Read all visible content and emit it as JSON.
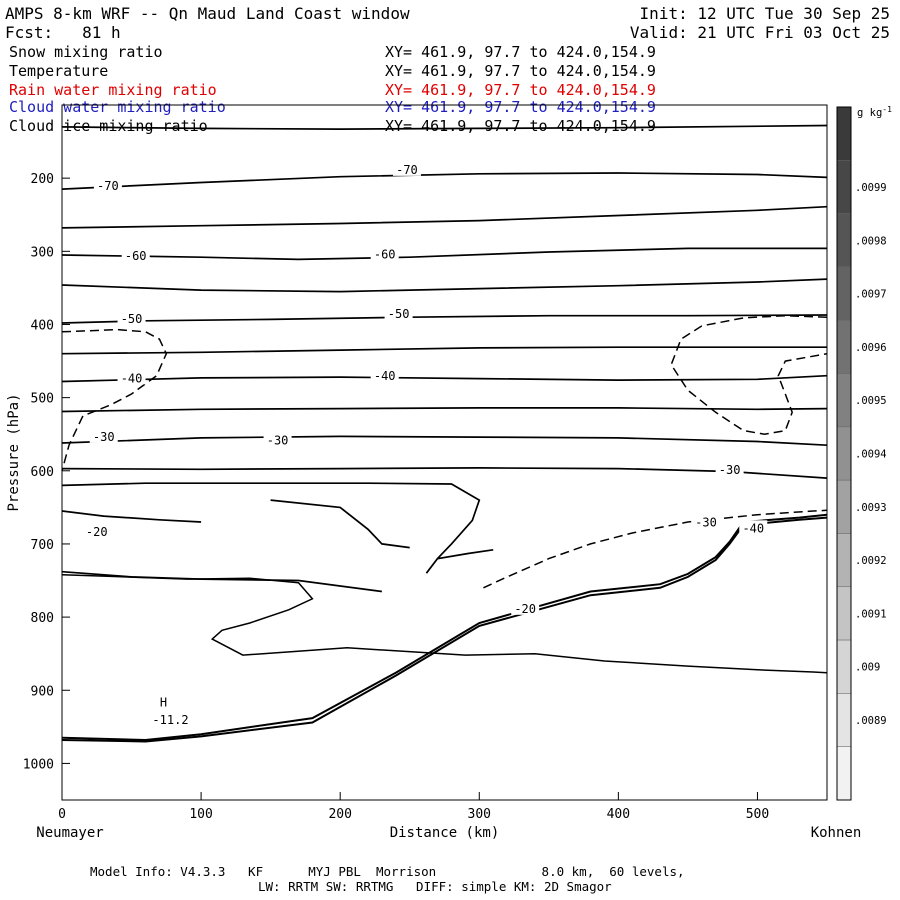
{
  "header": {
    "title": "AMPS 8-km WRF -- Qn Maud Land Coast window",
    "init": "Init: 12 UTC Tue 30 Sep 25",
    "fcst": "Fcst:   81 h",
    "valid": "Valid: 21 UTC Fri 03 Oct 25"
  },
  "layers": [
    {
      "name": "Snow mixing ratio",
      "xy": "XY= 461.9, 97.7 to 424.0,154.9",
      "color": "#000000"
    },
    {
      "name": "Temperature",
      "xy": "XY= 461.9, 97.7 to 424.0,154.9",
      "color": "#000000"
    },
    {
      "name": "Rain water mixing ratio",
      "xy": "XY= 461.9, 97.7 to 424.0,154.9",
      "color": "#e00000"
    },
    {
      "name": "Cloud water mixing ratio",
      "xy": "XY= 461.9, 97.7 to 424.0,154.9",
      "color": "#2020c0"
    },
    {
      "name": "Cloud ice mixing ratio",
      "xy": "XY= 461.9, 97.7 to 424.0,154.9",
      "color": "#000000"
    }
  ],
  "footer": {
    "line1": "Model Info: V4.3.3   KF      MYJ PBL  Morrison              8.0 km,  60 levels,",
    "line2": "LW: RRTM SW: RRTMG   DIFF: simple KM: 2D Smagor"
  },
  "chart_data": {
    "type": "contour",
    "xlabel": "Distance (km)",
    "ylabel": "Pressure (hPa)",
    "x_left_label": "Neumayer",
    "x_right_label": "Kohnen",
    "xlim": [
      0,
      550
    ],
    "ylim": [
      1050,
      100
    ],
    "x_ticks": [
      0,
      100,
      200,
      300,
      400,
      500
    ],
    "y_ticks": [
      200,
      300,
      400,
      500,
      600,
      700,
      800,
      900,
      1000
    ],
    "colorbar": {
      "unit": "g kg",
      "unit_exp": "-1",
      "labels": [
        ".0099",
        ".0098",
        ".0097",
        ".0096",
        ".0095",
        ".0094",
        ".0093",
        ".0092",
        ".0091",
        ".009",
        ".0089"
      ],
      "colors": [
        "#3a3a3a",
        "#474747",
        "#555555",
        "#636363",
        "#727272",
        "#818181",
        "#919191",
        "#a2a2a2",
        "#b3b3b3",
        "#c4c4c4",
        "#d5d5d5",
        "#e4e4e4",
        "#f2f2f2"
      ]
    },
    "isotherms": [
      {
        "points": [
          [
            0,
            130
          ],
          [
            100,
            132
          ],
          [
            200,
            133
          ],
          [
            300,
            132
          ],
          [
            400,
            131
          ],
          [
            550,
            128
          ]
        ]
      },
      {
        "points": [
          [
            0,
            215
          ],
          [
            100,
            206
          ],
          [
            200,
            198
          ],
          [
            300,
            194
          ],
          [
            400,
            193
          ],
          [
            500,
            195
          ],
          [
            550,
            199
          ]
        ]
      },
      {
        "points": [
          [
            0,
            268
          ],
          [
            100,
            265
          ],
          [
            200,
            262
          ],
          [
            300,
            258
          ],
          [
            400,
            251
          ],
          [
            500,
            244
          ],
          [
            550,
            239
          ]
        ]
      },
      {
        "points": [
          [
            0,
            305
          ],
          [
            100,
            308
          ],
          [
            170,
            311
          ],
          [
            250,
            308
          ],
          [
            350,
            301
          ],
          [
            450,
            296
          ],
          [
            550,
            296
          ]
        ]
      },
      {
        "points": [
          [
            0,
            346
          ],
          [
            100,
            353
          ],
          [
            200,
            355
          ],
          [
            300,
            351
          ],
          [
            400,
            347
          ],
          [
            500,
            342
          ],
          [
            550,
            338
          ]
        ]
      },
      {
        "points": [
          [
            0,
            398
          ],
          [
            60,
            395
          ],
          [
            150,
            393
          ],
          [
            250,
            390
          ],
          [
            350,
            388
          ],
          [
            450,
            388
          ],
          [
            550,
            387
          ]
        ]
      },
      {
        "points": [
          [
            0,
            440
          ],
          [
            100,
            438
          ],
          [
            200,
            435
          ],
          [
            300,
            432
          ],
          [
            400,
            431
          ],
          [
            500,
            431
          ],
          [
            550,
            431
          ]
        ]
      },
      {
        "points": [
          [
            0,
            478
          ],
          [
            100,
            473
          ],
          [
            200,
            472
          ],
          [
            300,
            474
          ],
          [
            400,
            476
          ],
          [
            500,
            475
          ],
          [
            550,
            470
          ]
        ]
      },
      {
        "points": [
          [
            0,
            519
          ],
          [
            100,
            516
          ],
          [
            200,
            515
          ],
          [
            300,
            514
          ],
          [
            400,
            514
          ],
          [
            500,
            516
          ],
          [
            550,
            515
          ]
        ]
      },
      {
        "points": [
          [
            0,
            562
          ],
          [
            100,
            555
          ],
          [
            200,
            553
          ],
          [
            300,
            554
          ],
          [
            400,
            555
          ],
          [
            500,
            560
          ],
          [
            550,
            565
          ]
        ]
      },
      {
        "points": [
          [
            0,
            597
          ],
          [
            100,
            598
          ],
          [
            200,
            597
          ],
          [
            300,
            596
          ],
          [
            400,
            597
          ],
          [
            480,
            601
          ],
          [
            550,
            610
          ]
        ]
      },
      {
        "points": [
          [
            0,
            620
          ],
          [
            60,
            617
          ],
          [
            150,
            617
          ],
          [
            220,
            617
          ],
          [
            280,
            618
          ],
          [
            300,
            640
          ],
          [
            295,
            668
          ],
          [
            280,
            700
          ],
          [
            270,
            720
          ],
          [
            262,
            740
          ],
          [
            270,
            720
          ],
          [
            292,
            713
          ],
          [
            310,
            708
          ]
        ]
      },
      {
        "points": [
          [
            0,
            738
          ],
          [
            50,
            745
          ],
          [
            100,
            748
          ],
          [
            170,
            750
          ],
          [
            230,
            765
          ]
        ]
      },
      {
        "points": [
          [
            0,
            655
          ],
          [
            30,
            662
          ],
          [
            70,
            667
          ],
          [
            100,
            670
          ]
        ]
      },
      {
        "points": [
          [
            150,
            640
          ],
          [
            200,
            650
          ],
          [
            220,
            680
          ],
          [
            230,
            700
          ],
          [
            250,
            705
          ]
        ]
      }
    ],
    "solid_extra": [
      {
        "points": [
          [
            0,
            742
          ],
          [
            30,
            744
          ],
          [
            90,
            748
          ],
          [
            135,
            747
          ],
          [
            170,
            753
          ],
          [
            180,
            775
          ],
          [
            163,
            790
          ],
          [
            135,
            808
          ],
          [
            115,
            818
          ],
          [
            108,
            830
          ],
          [
            130,
            852
          ],
          [
            205,
            842
          ],
          [
            290,
            852
          ],
          [
            340,
            850
          ],
          [
            390,
            860
          ],
          [
            450,
            867
          ],
          [
            500,
            872
          ],
          [
            540,
            875
          ],
          [
            550,
            876
          ]
        ]
      }
    ],
    "terrain": [
      {
        "points": [
          [
            0,
            965
          ],
          [
            60,
            968
          ],
          [
            100,
            960
          ],
          [
            180,
            938
          ],
          [
            240,
            876
          ],
          [
            300,
            808
          ],
          [
            380,
            765
          ],
          [
            430,
            755
          ],
          [
            450,
            741
          ],
          [
            470,
            718
          ],
          [
            480,
            697
          ],
          [
            490,
            670
          ],
          [
            530,
            664
          ],
          [
            550,
            660
          ]
        ]
      },
      {
        "points": [
          [
            0,
            968
          ],
          [
            60,
            970
          ],
          [
            100,
            963
          ],
          [
            180,
            944
          ],
          [
            240,
            880
          ],
          [
            300,
            812
          ],
          [
            380,
            770
          ],
          [
            430,
            760
          ],
          [
            450,
            745
          ],
          [
            470,
            722
          ],
          [
            480,
            700
          ],
          [
            490,
            674
          ],
          [
            530,
            667
          ],
          [
            550,
            664
          ]
        ]
      }
    ],
    "dashed": [
      {
        "points": [
          [
            0,
            410
          ],
          [
            40,
            407
          ],
          [
            60,
            410
          ],
          [
            70,
            420
          ],
          [
            75,
            440
          ],
          [
            68,
            470
          ],
          [
            50,
            495
          ],
          [
            35,
            510
          ],
          [
            15,
            525
          ],
          [
            5,
            565
          ],
          [
            0,
            600
          ]
        ]
      },
      {
        "points": [
          [
            550,
            390
          ],
          [
            520,
            388
          ],
          [
            490,
            391
          ],
          [
            460,
            402
          ],
          [
            445,
            420
          ],
          [
            438,
            455
          ],
          [
            450,
            490
          ],
          [
            470,
            520
          ],
          [
            490,
            545
          ],
          [
            505,
            550
          ],
          [
            520,
            545
          ],
          [
            525,
            520
          ],
          [
            520,
            495
          ],
          [
            515,
            470
          ],
          [
            520,
            450
          ],
          [
            550,
            440
          ]
        ]
      },
      {
        "points": [
          [
            303,
            760
          ],
          [
            320,
            745
          ],
          [
            350,
            720
          ],
          [
            380,
            700
          ],
          [
            410,
            685
          ],
          [
            450,
            670
          ],
          [
            500,
            660
          ],
          [
            540,
            655
          ],
          [
            550,
            654
          ]
        ]
      }
    ],
    "labels": [
      {
        "text": "-70",
        "x": 33,
        "y": 212
      },
      {
        "text": "-70",
        "x": 248,
        "y": 190
      },
      {
        "text": "-60",
        "x": 53,
        "y": 308
      },
      {
        "text": "-60",
        "x": 232,
        "y": 306
      },
      {
        "text": "-50",
        "x": 50,
        "y": 394
      },
      {
        "text": "-50",
        "x": 242,
        "y": 387
      },
      {
        "text": "-40",
        "x": 50,
        "y": 475
      },
      {
        "text": "-40",
        "x": 232,
        "y": 472
      },
      {
        "text": "-30",
        "x": 30,
        "y": 555
      },
      {
        "text": "-30",
        "x": 155,
        "y": 560
      },
      {
        "text": "-30",
        "x": 480,
        "y": 600
      },
      {
        "text": "-30",
        "x": 463,
        "y": 672
      },
      {
        "text": "-40",
        "x": 497,
        "y": 680
      },
      {
        "text": "-20",
        "x": 25,
        "y": 685
      },
      {
        "text": "-20",
        "x": 333,
        "y": 790
      },
      {
        "text": "H",
        "x": 73,
        "y": 918
      },
      {
        "text": "-11.2",
        "x": 78,
        "y": 942
      }
    ]
  }
}
